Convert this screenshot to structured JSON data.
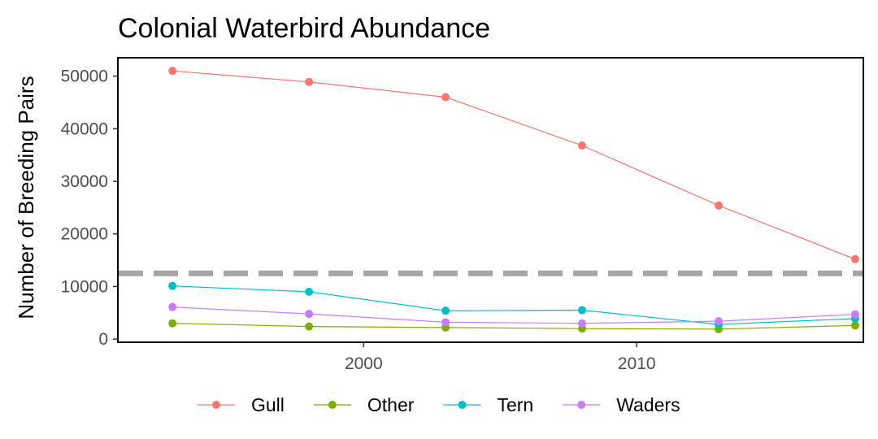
{
  "chart_data": {
    "type": "line",
    "title": "Colonial Waterbird Abundance",
    "xlabel": "",
    "ylabel": "Number of Breeding Pairs",
    "xlim": [
      1991,
      2018.3
    ],
    "ylim": [
      -600,
      53500
    ],
    "x_ticks": [
      2000,
      2010
    ],
    "y_ticks": [
      0,
      10000,
      20000,
      30000,
      40000,
      50000
    ],
    "grid": false,
    "legend_position": "bottom",
    "reference_line": {
      "y": 12500,
      "style": "dashed",
      "color": "#a6a6a6"
    },
    "x": [
      1993,
      1998,
      2003,
      2008,
      2013,
      2018
    ],
    "series": [
      {
        "name": "Gull",
        "color": "#f8766d",
        "values": [
          51000,
          48900,
          46000,
          36800,
          25400,
          15200
        ]
      },
      {
        "name": "Other",
        "color": "#7cae00",
        "values": [
          3000,
          2400,
          2200,
          2000,
          1900,
          2600
        ]
      },
      {
        "name": "Tern",
        "color": "#00bfc4",
        "values": [
          10100,
          9000,
          5400,
          5500,
          2800,
          3900
        ]
      },
      {
        "name": "Waders",
        "color": "#c77cff",
        "values": [
          6100,
          4800,
          3200,
          3000,
          3400,
          4700
        ]
      }
    ]
  }
}
